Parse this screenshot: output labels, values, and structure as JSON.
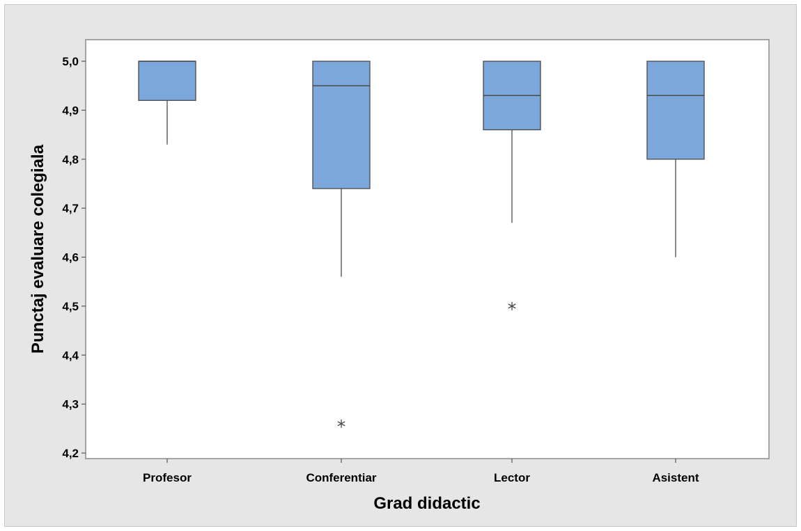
{
  "chart_data": {
    "type": "boxplot",
    "title": "",
    "xlabel": "Grad didactic",
    "ylabel": "Punctaj evaluare colegiala",
    "ylim": [
      4.2,
      5.0
    ],
    "yticks": [
      "4,2",
      "4,3",
      "4,4",
      "4,5",
      "4,6",
      "4,7",
      "4,8",
      "4,9",
      "5,0"
    ],
    "ytick_values": [
      4.2,
      4.3,
      4.4,
      4.5,
      4.6,
      4.7,
      4.8,
      4.9,
      5.0
    ],
    "grid": false,
    "categories": [
      "Profesor",
      "Conferentiar",
      "Lector",
      "Asistent"
    ],
    "boxes": [
      {
        "category": "Profesor",
        "whisker_low": 4.83,
        "q1": 4.92,
        "median": 5.0,
        "q3": 5.0,
        "whisker_high": 5.0,
        "outliers": []
      },
      {
        "category": "Conferentiar",
        "whisker_low": 4.56,
        "q1": 4.74,
        "median": 4.95,
        "q3": 5.0,
        "whisker_high": 5.0,
        "outliers": [
          4.26
        ]
      },
      {
        "category": "Lector",
        "whisker_low": 4.67,
        "q1": 4.86,
        "median": 4.93,
        "q3": 5.0,
        "whisker_high": 5.0,
        "outliers": [
          4.5
        ]
      },
      {
        "category": "Asistent",
        "whisker_low": 4.6,
        "q1": 4.8,
        "median": 4.93,
        "q3": 5.0,
        "whisker_high": 5.0,
        "outliers": []
      }
    ],
    "colors": {
      "box_fill": "#7ba7db",
      "box_stroke": "#4a4a4a",
      "background": "#e6e6e6",
      "plot_area": "#ffffff"
    }
  }
}
